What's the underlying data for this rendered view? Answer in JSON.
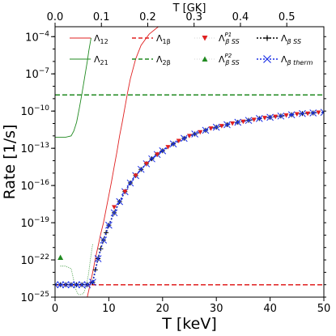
{
  "chart_data": {
    "type": "line",
    "xlabel": "T [keV]",
    "top_xlabel": "T [GK]",
    "ylabel": "Rate [1/s]",
    "xlim": [
      0,
      50
    ],
    "top_xlim": [
      0,
      0.58
    ],
    "ylim_log10": [
      -25,
      -3.2
    ],
    "y_scale": "log",
    "x_ticks": [
      "0",
      "10",
      "20",
      "30",
      "40",
      "50"
    ],
    "x_tick_values": [
      0,
      10,
      20,
      30,
      40,
      50
    ],
    "top_ticks": [
      "0.0",
      "0.1",
      "0.2",
      "0.3",
      "0.4",
      "0.5"
    ],
    "top_tick_values": [
      0.0,
      0.1,
      0.2,
      0.3,
      0.4,
      0.5
    ],
    "y_ticks": [
      {
        "exp": -25,
        "base": "10",
        "sup": "−25"
      },
      {
        "exp": -22,
        "base": "10",
        "sup": "−22"
      },
      {
        "exp": -19,
        "base": "10",
        "sup": "−19"
      },
      {
        "exp": -16,
        "base": "10",
        "sup": "−16"
      },
      {
        "exp": -13,
        "base": "10",
        "sup": "−13"
      },
      {
        "exp": -10,
        "base": "10",
        "sup": "−10"
      },
      {
        "exp": -7,
        "base": "10",
        "sup": "−7"
      },
      {
        "exp": -4,
        "base": "10",
        "sup": "−4"
      }
    ],
    "legend": {
      "placement": "top",
      "entries": [
        {
          "base": "Λ",
          "sub": "12",
          "sup": "",
          "color": "#e02020",
          "style": "thin"
        },
        {
          "base": "Λ",
          "sub": "21",
          "sup": "",
          "color": "#208a20",
          "style": "thin"
        },
        {
          "base": "Λ",
          "sub": "1β",
          "sup": "",
          "color": "#e02020",
          "style": "dashed"
        },
        {
          "base": "Λ",
          "sub": "2β",
          "sup": "",
          "color": "#208a20",
          "style": "dashed"
        },
        {
          "base": "Λ",
          "sub": "β SS",
          "sup": "P1",
          "color": "#e02020",
          "style": "marker-down"
        },
        {
          "base": "Λ",
          "sub": "β SS",
          "sup": "P2",
          "color": "#208a20",
          "style": "marker-up"
        },
        {
          "base": "Λ",
          "sub": "β SS",
          "sup": "",
          "color": "#000000",
          "style": "dotted-plus"
        },
        {
          "base": "Λ",
          "sub": "β therm",
          "sup": "",
          "color": "#1a2fe6",
          "style": "dotted-x"
        }
      ]
    },
    "series": [
      {
        "key": "lambda_12",
        "color": "#e02020",
        "x": [
          6.0,
          6.5,
          7.0,
          7.5,
          8.0,
          8.5,
          9.0,
          9.5,
          10.0,
          10.5,
          11.0,
          11.5,
          12.0,
          12.5,
          13.0,
          13.5,
          14.0,
          15.0,
          16.0,
          17.5,
          19.2
        ],
        "log10_y": [
          -25.0,
          -24.0,
          -23.0,
          -21.9,
          -20.9,
          -19.9,
          -19.0,
          -17.9,
          -16.8,
          -15.7,
          -14.5,
          -13.3,
          -12.0,
          -10.9,
          -9.7,
          -8.5,
          -7.4,
          -5.8,
          -4.7,
          -3.8,
          -3.2
        ]
      },
      {
        "key": "lambda_21",
        "color": "#208a20",
        "x": [
          0.0,
          1.0,
          2.0,
          3.0,
          3.5,
          4.0,
          4.5,
          5.0,
          5.5,
          6.0,
          6.3,
          6.7
        ],
        "log10_y": [
          -12.1,
          -12.1,
          -12.1,
          -12.0,
          -11.6,
          -10.9,
          -9.8,
          -8.6,
          -7.3,
          -6.0,
          -5.1,
          -4.1
        ]
      },
      {
        "key": "lambda_21_low",
        "color": "#208a20",
        "x": [
          1.0,
          2.0,
          3.0,
          3.8,
          4.3,
          4.8,
          5.3,
          5.8,
          6.2,
          6.6,
          7.0
        ],
        "log10_y": [
          -22.5,
          -22.5,
          -22.7,
          -24.3,
          -24.8,
          -24.8,
          -24.7,
          -24.1,
          -23.2,
          -21.9,
          -20.7
        ]
      },
      {
        "key": "lambda_1beta",
        "color": "#e02020",
        "x": [
          0,
          50
        ],
        "log10_y": [
          -24.0,
          -24.0
        ]
      },
      {
        "key": "lambda_2beta",
        "color": "#208a20",
        "x": [
          0,
          50
        ],
        "log10_y": [
          -8.7,
          -8.7
        ]
      },
      {
        "key": "lambda_beta_ss",
        "color": "#000000",
        "x": [
          0,
          1,
          2,
          3,
          4,
          5,
          6,
          7,
          7.5,
          8,
          8.5,
          9,
          9.5,
          10,
          11,
          12,
          13,
          14,
          15,
          16,
          17,
          18,
          19,
          20,
          22,
          24,
          26,
          28,
          30,
          32,
          34,
          36,
          38,
          40,
          42,
          44,
          46,
          48,
          50
        ],
        "log10_y": [
          -24.0,
          -24.0,
          -24.0,
          -24.0,
          -24.0,
          -24.0,
          -24.0,
          -23.8,
          -22.8,
          -21.9,
          -21.1,
          -20.4,
          -19.8,
          -19.2,
          -18.2,
          -17.3,
          -16.5,
          -15.8,
          -15.2,
          -14.7,
          -14.25,
          -13.85,
          -13.5,
          -13.2,
          -12.65,
          -12.2,
          -11.85,
          -11.55,
          -11.3,
          -11.1,
          -10.9,
          -10.75,
          -10.6,
          -10.5,
          -10.4,
          -10.3,
          -10.2,
          -10.15,
          -10.1
        ]
      },
      {
        "key": "lambda_beta_ss_p1",
        "color": "#e02020",
        "x": [
          11,
          13,
          15,
          17,
          19,
          21,
          23,
          25,
          27,
          29,
          31,
          33,
          35,
          37,
          39,
          41,
          43,
          45,
          47,
          49
        ],
        "log10_y": [
          -17.75,
          -16.5,
          -15.2,
          -14.25,
          -13.5,
          -12.9,
          -12.4,
          -12.0,
          -11.7,
          -11.4,
          -11.2,
          -11.0,
          -10.85,
          -10.7,
          -10.55,
          -10.45,
          -10.35,
          -10.25,
          -10.2,
          -10.12
        ]
      },
      {
        "key": "lambda_beta_ss_p2",
        "color": "#208a20",
        "x": [
          1
        ],
        "log10_y": [
          -21.8
        ]
      },
      {
        "key": "lambda_beta_therm",
        "color": "#1a2fe6",
        "x": [
          0,
          1,
          2,
          3,
          4,
          5,
          6,
          7,
          8,
          9,
          10,
          11,
          12,
          13,
          14,
          15,
          16,
          17,
          18,
          19,
          20,
          22,
          24,
          26,
          28,
          30,
          32,
          34,
          36,
          38,
          40,
          42,
          44,
          46,
          48,
          50
        ],
        "log10_y": [
          -24.0,
          -24.0,
          -24.0,
          -24.0,
          -24.0,
          -24.0,
          -24.0,
          -23.8,
          -21.9,
          -20.4,
          -19.2,
          -18.2,
          -17.3,
          -16.5,
          -15.8,
          -15.2,
          -14.7,
          -14.25,
          -13.85,
          -13.5,
          -13.2,
          -12.65,
          -12.2,
          -11.85,
          -11.55,
          -11.3,
          -11.1,
          -10.9,
          -10.75,
          -10.6,
          -10.5,
          -10.4,
          -10.3,
          -10.2,
          -10.15,
          -10.1
        ]
      }
    ]
  }
}
